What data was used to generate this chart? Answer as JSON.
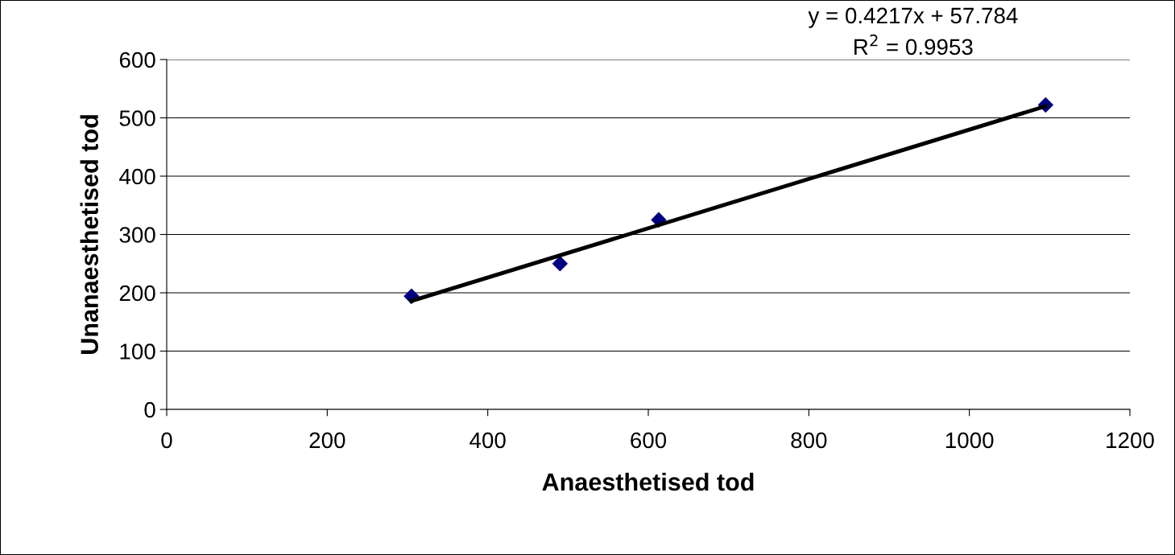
{
  "chart_data": {
    "type": "scatter",
    "xlabel": "Anaesthetised tod",
    "ylabel": "Unanaesthetised tod",
    "series": [
      {
        "color": "#000080",
        "marker": "diamond",
        "x": [
          305,
          490,
          613,
          1095
        ],
        "values": [
          194,
          250,
          325,
          522
        ]
      },
      {
        "type": "line",
        "color": "#000000",
        "marker": "none",
        "line_style": "solid",
        "x": [
          305,
          1095
        ],
        "values": [
          186,
          520
        ]
      }
    ],
    "annotations": [
      "y = 0.4217x + 57.784",
      "R$^{2}$ = 0.9953"
    ],
    "xlim": [
      0,
      1200
    ],
    "xticks": [
      0,
      200,
      400,
      600,
      800,
      1000,
      1200
    ],
    "ylim": [
      0,
      600
    ],
    "yticks": [
      0,
      100,
      200,
      300,
      400,
      500,
      600
    ],
    "grid": "y",
    "legend": false
  }
}
